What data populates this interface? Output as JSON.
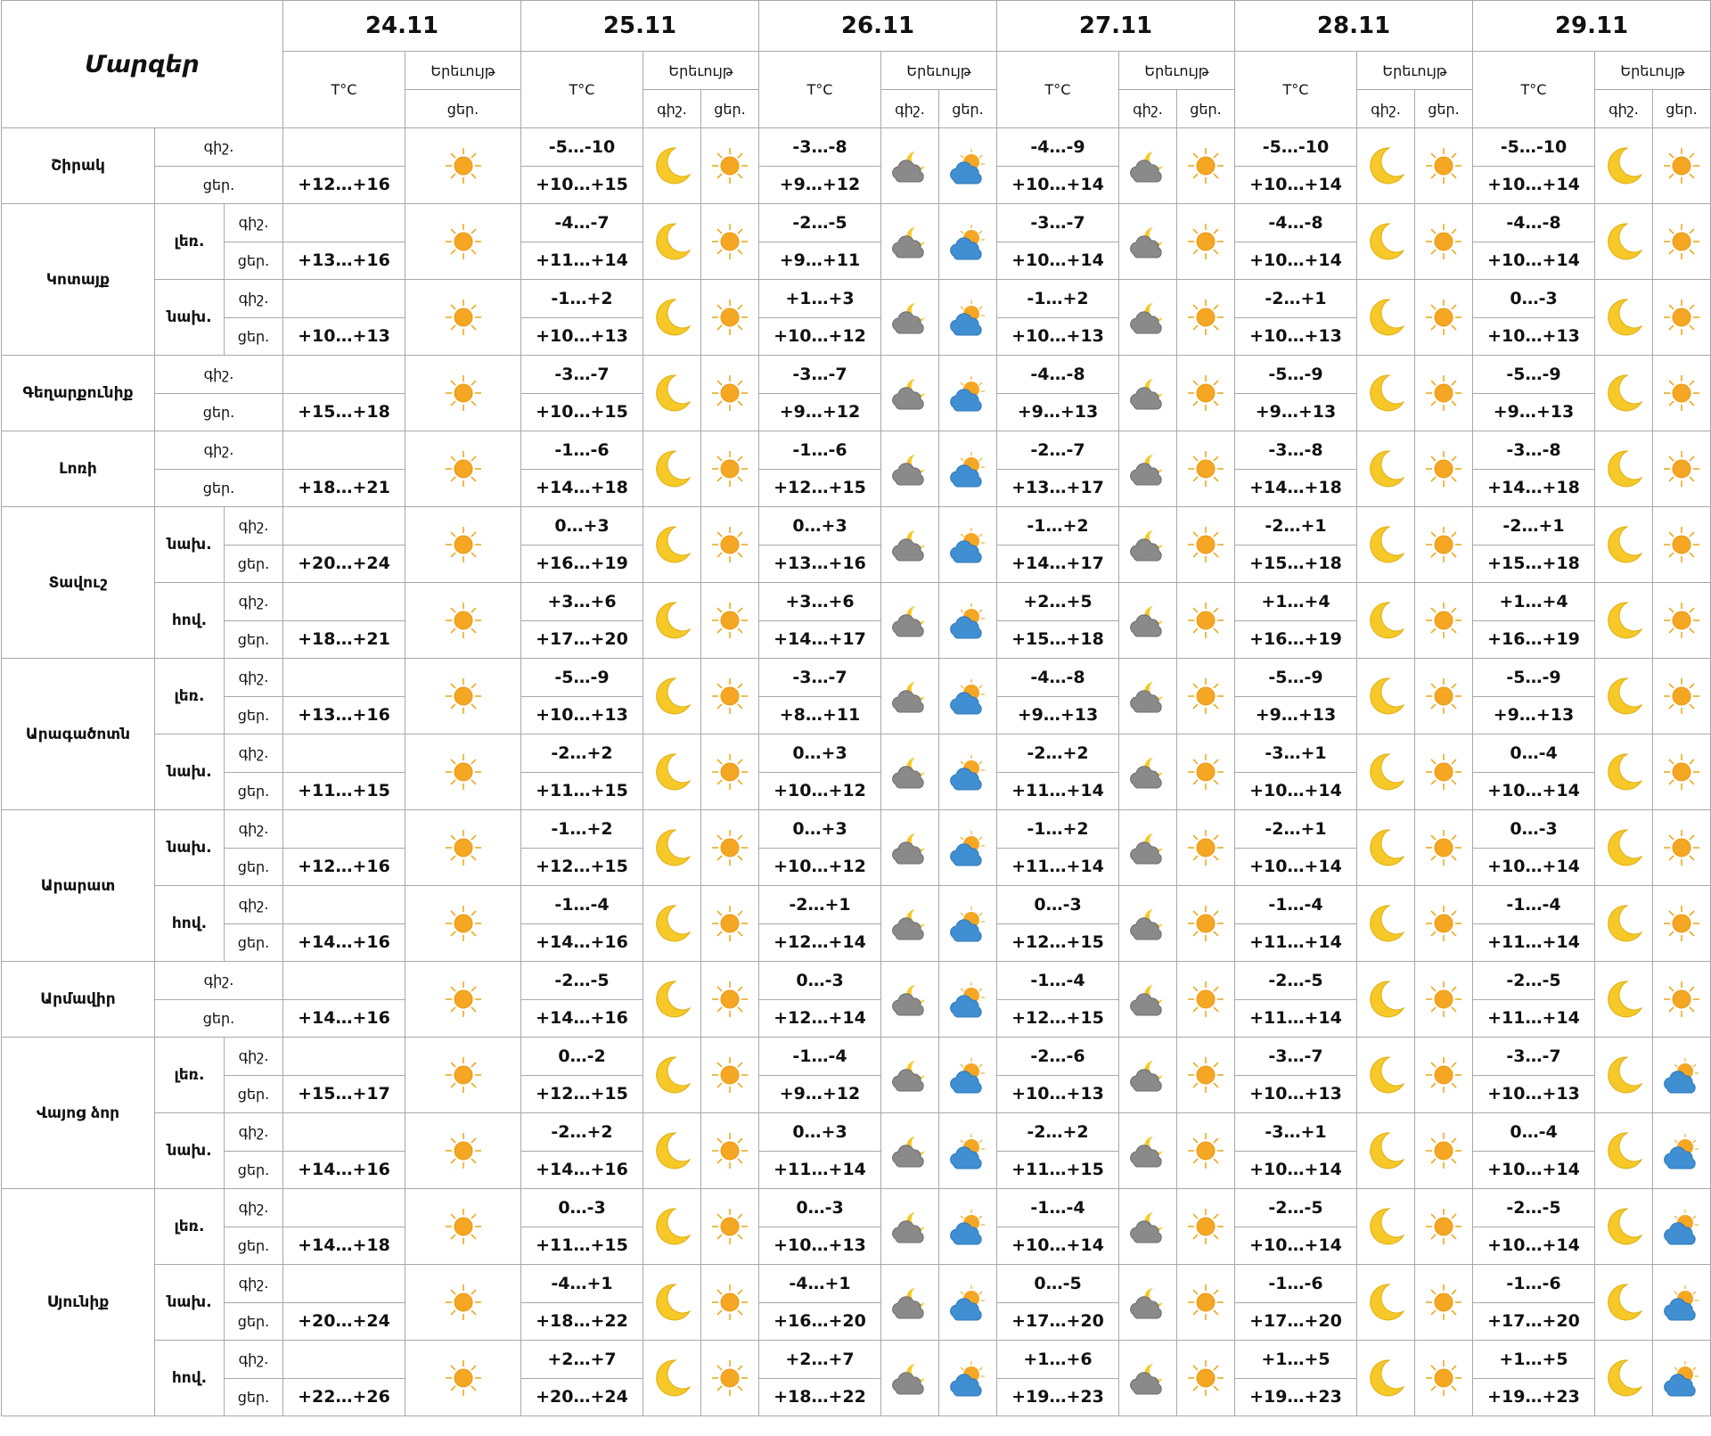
{
  "header": {
    "regions_title": "Մարզեր",
    "temp_label": "T°C",
    "phenomenon_label": "Երեւույթ",
    "night": "գիշ.",
    "day": "ցեր.",
    "dates": [
      "24.11",
      "25.11",
      "26.11",
      "27.11",
      "28.11",
      "29.11"
    ]
  },
  "regions": [
    {
      "name": "Շիրակ",
      "zones": [
        {
          "night": [
            "-5…-10",
            "-3…-8",
            "-4…-9",
            "-5…-10",
            "-5…-10"
          ],
          "day": [
            "+12…+16",
            "+10…+15",
            "+9…+12",
            "+10…+14",
            "+10…+14",
            "+10…+14"
          ]
        }
      ]
    },
    {
      "name": "Կոտայք",
      "zones": [
        {
          "name": "լեռ.",
          "night": [
            "-4…-7",
            "-2…-5",
            "-3…-7",
            "-4…-8",
            "-4…-8"
          ],
          "day": [
            "+13…+16",
            "+11…+14",
            "+9…+11",
            "+10…+14",
            "+10…+14",
            "+10…+14"
          ]
        },
        {
          "name": "նախ.",
          "night": [
            "-1…+2",
            "+1…+3",
            "-1…+2",
            "-2…+1",
            "0…-3"
          ],
          "day": [
            "+10…+13",
            "+10…+13",
            "+10…+12",
            "+10…+13",
            "+10…+13",
            "+10…+13"
          ]
        }
      ]
    },
    {
      "name": "Գեղարքունիք",
      "zones": [
        {
          "night": [
            "-3…-7",
            "-3…-7",
            "-4…-8",
            "-5…-9",
            "-5…-9"
          ],
          "day": [
            "+15…+18",
            "+10…+15",
            "+9…+12",
            "+9…+13",
            "+9…+13",
            "+9…+13"
          ]
        }
      ]
    },
    {
      "name": "Լոռի",
      "zones": [
        {
          "night": [
            "-1…-6",
            "-1…-6",
            "-2…-7",
            "-3…-8",
            "-3…-8"
          ],
          "day": [
            "+18…+21",
            "+14…+18",
            "+12…+15",
            "+13…+17",
            "+14…+18",
            "+14…+18"
          ]
        }
      ]
    },
    {
      "name": "Տավուշ",
      "zones": [
        {
          "name": "նախ.",
          "night": [
            "0…+3",
            "0…+3",
            "-1…+2",
            "-2…+1",
            "-2…+1"
          ],
          "day": [
            "+20…+24",
            "+16…+19",
            "+13…+16",
            "+14…+17",
            "+15…+18",
            "+15…+18"
          ]
        },
        {
          "name": "հով.",
          "night": [
            "+3…+6",
            "+3…+6",
            "+2…+5",
            "+1…+4",
            "+1…+4"
          ],
          "day": [
            "+18…+21",
            "+17…+20",
            "+14…+17",
            "+15…+18",
            "+16…+19",
            "+16…+19"
          ]
        }
      ]
    },
    {
      "name": "Արագածոտն",
      "zones": [
        {
          "name": "լեռ.",
          "night": [
            "-5…-9",
            "-3…-7",
            "-4…-8",
            "-5…-9",
            "-5…-9"
          ],
          "day": [
            "+13…+16",
            "+10…+13",
            "+8…+11",
            "+9…+13",
            "+9…+13",
            "+9…+13"
          ]
        },
        {
          "name": "նախ.",
          "night": [
            "-2…+2",
            "0…+3",
            "-2…+2",
            "-3…+1",
            "0…-4"
          ],
          "day": [
            "+11…+15",
            "+11…+15",
            "+10…+12",
            "+11…+14",
            "+10…+14",
            "+10…+14"
          ]
        }
      ]
    },
    {
      "name": "Արարատ",
      "zones": [
        {
          "name": "նախ.",
          "night": [
            "-1…+2",
            "0…+3",
            "-1…+2",
            "-2…+1",
            "0…-3"
          ],
          "day": [
            "+12…+16",
            "+12…+15",
            "+10…+12",
            "+11…+14",
            "+10…+14",
            "+10…+14"
          ]
        },
        {
          "name": "հով.",
          "night": [
            "-1…-4",
            "-2…+1",
            "0…-3",
            "-1…-4",
            "-1…-4"
          ],
          "day": [
            "+14…+16",
            "+14…+16",
            "+12…+14",
            "+12…+15",
            "+11…+14",
            "+11…+14"
          ]
        }
      ]
    },
    {
      "name": "Արմավիր",
      "zones": [
        {
          "night": [
            "-2…-5",
            "0…-3",
            "-1…-4",
            "-2…-5",
            "-2…-5"
          ],
          "day": [
            "+14…+16",
            "+14…+16",
            "+12…+14",
            "+12…+15",
            "+11…+14",
            "+11…+14"
          ]
        }
      ]
    },
    {
      "name": "Վայոց ձոր",
      "zones": [
        {
          "name": "լեռ.",
          "night": [
            "0…-2",
            "-1…-4",
            "-2…-6",
            "-3…-7",
            "-3…-7"
          ],
          "day": [
            "+15…+17",
            "+12…+15",
            "+9…+12",
            "+10…+13",
            "+10…+13",
            "+10…+13"
          ]
        },
        {
          "name": "նախ.",
          "night": [
            "-2…+2",
            "0…+3",
            "-2…+2",
            "-3…+1",
            "0…-4"
          ],
          "day": [
            "+14…+16",
            "+14…+16",
            "+11…+14",
            "+11…+15",
            "+10…+14",
            "+10…+14"
          ]
        }
      ]
    },
    {
      "name": "Սյունիք",
      "zones": [
        {
          "name": "լեռ.",
          "night": [
            "0…-3",
            "0…-3",
            "-1…-4",
            "-2…-5",
            "-2…-5"
          ],
          "day": [
            "+14…+18",
            "+11…+15",
            "+10…+13",
            "+10…+14",
            "+10…+14",
            "+10…+14"
          ]
        },
        {
          "name": "նախ.",
          "night": [
            "-4…+1",
            "-4…+1",
            "0…-5",
            "-1…-6",
            "-1…-6"
          ],
          "day": [
            "+20…+24",
            "+18…+22",
            "+16…+20",
            "+17…+20",
            "+17…+20",
            "+17…+20"
          ]
        },
        {
          "name": "հով.",
          "night": [
            "+2…+7",
            "+2…+7",
            "+1…+6",
            "+1…+5",
            "+1…+5"
          ],
          "day": [
            "+22…+26",
            "+20…+24",
            "+18…+22",
            "+19…+23",
            "+19…+23",
            "+19…+23"
          ]
        }
      ]
    }
  ]
}
